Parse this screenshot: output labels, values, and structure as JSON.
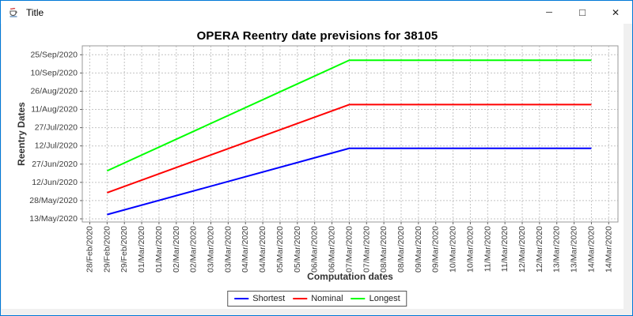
{
  "window": {
    "title": "Title",
    "icon": "java-coffee-cup-icon",
    "controls": [
      {
        "id": "minimize",
        "glyph": "─"
      },
      {
        "id": "maximize",
        "glyph": "□"
      },
      {
        "id": "close",
        "glyph": "✕"
      }
    ]
  },
  "colors": {
    "window_border": "#0078d7",
    "titlebar_bg": "#ffffff",
    "content_bg": "#f0f0f0",
    "chart_bg": "#ffffff",
    "gridline": "#c4c4c4",
    "plot_border": "#999999",
    "tick_mark": "#666666",
    "tick_label": "#3c3c3c",
    "axis_label": "#333333",
    "series_shortest": "#0000ff",
    "series_nominal": "#ff0000",
    "series_longest": "#00ff00"
  },
  "chart_data": {
    "type": "line",
    "title": "OPERA Reentry date previsions for 38105",
    "xlabel": "Computation dates",
    "ylabel": "Reentry Dates",
    "grid": "dashed-both-axes",
    "legend_position": "bottom-center",
    "x_categories": [
      "28/Feb/2020",
      "29/Feb/2020",
      "29/Feb/2020",
      "01/Mar/2020",
      "01/Mar/2020",
      "02/Mar/2020",
      "02/Mar/2020",
      "03/Mar/2020",
      "03/Mar/2020",
      "04/Mar/2020",
      "04/Mar/2020",
      "05/Mar/2020",
      "05/Mar/2020",
      "06/Mar/2020",
      "06/Mar/2020",
      "07/Mar/2020",
      "07/Mar/2020",
      "08/Mar/2020",
      "08/Mar/2020",
      "09/Mar/2020",
      "09/Mar/2020",
      "10/Mar/2020",
      "10/Mar/2020",
      "11/Mar/2020",
      "11/Mar/2020",
      "12/Mar/2020",
      "12/Mar/2020",
      "13/Mar/2020",
      "13/Mar/2020",
      "14/Mar/2020",
      "14/Mar/2020"
    ],
    "y_axis_note": "date axis, 15-day tick interval, days counted from 13/May/2020",
    "y_ticks": [
      {
        "label": "13/May/2020",
        "days": 0
      },
      {
        "label": "28/May/2020",
        "days": 15
      },
      {
        "label": "12/Jun/2020",
        "days": 30
      },
      {
        "label": "27/Jun/2020",
        "days": 45
      },
      {
        "label": "12/Jul/2020",
        "days": 60
      },
      {
        "label": "27/Jul/2020",
        "days": 75
      },
      {
        "label": "11/Aug/2020",
        "days": 90
      },
      {
        "label": "26/Aug/2020",
        "days": 105
      },
      {
        "label": "10/Sep/2020",
        "days": 120
      },
      {
        "label": "25/Sep/2020",
        "days": 135
      }
    ],
    "series": [
      {
        "name": "Shortest",
        "color": "#0000ff",
        "shape": "linear rise from 29/Feb to 07/Mar, then flat plateau to 14/Mar",
        "breakpoints": [
          {
            "x_index": 1,
            "x": "29/Feb/2020",
            "y_days": 3.5,
            "y_date": "16/May/2020"
          },
          {
            "x_index": 15,
            "x": "07/Mar/2020",
            "y_days": 58,
            "y_date": "10/Jul/2020"
          },
          {
            "x_index": 29,
            "x": "14/Mar/2020",
            "y_days": 58,
            "y_date": "10/Jul/2020"
          }
        ]
      },
      {
        "name": "Nominal",
        "color": "#ff0000",
        "shape": "linear rise from 29/Feb to 07/Mar, then flat plateau to 14/Mar",
        "breakpoints": [
          {
            "x_index": 1,
            "x": "29/Feb/2020",
            "y_days": 21.5,
            "y_date": "03/Jun/2020"
          },
          {
            "x_index": 15,
            "x": "07/Mar/2020",
            "y_days": 94,
            "y_date": "15/Aug/2020"
          },
          {
            "x_index": 29,
            "x": "14/Mar/2020",
            "y_days": 94,
            "y_date": "15/Aug/2020"
          }
        ]
      },
      {
        "name": "Longest",
        "color": "#00ff00",
        "shape": "linear rise from 29/Feb to 07/Mar, then flat plateau to 14/Mar",
        "breakpoints": [
          {
            "x_index": 1,
            "x": "29/Feb/2020",
            "y_days": 39.5,
            "y_date": "21/Jun/2020"
          },
          {
            "x_index": 15,
            "x": "07/Mar/2020",
            "y_days": 130.5,
            "y_date": "20/Sep/2020"
          },
          {
            "x_index": 29,
            "x": "14/Mar/2020",
            "y_days": 130.5,
            "y_date": "20/Sep/2020"
          }
        ]
      }
    ]
  }
}
